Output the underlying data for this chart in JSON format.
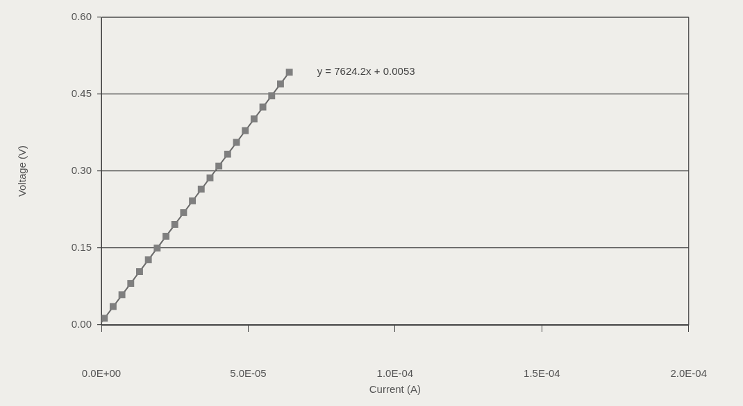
{
  "chart_data": {
    "type": "line",
    "xlabel": "Current (A)",
    "ylabel": "Voltage (V)",
    "xlim": [
      0,
      0.0002
    ],
    "xticks": [
      {
        "value": 0,
        "label": "0.0E+00"
      },
      {
        "value": 5e-05,
        "label": "5.0E-05"
      },
      {
        "value": 0.0001,
        "label": "1.0E-04"
      },
      {
        "value": 0.00015,
        "label": "1.5E-04"
      },
      {
        "value": 0.0002,
        "label": "2.0E-04"
      }
    ],
    "ylim": [
      0,
      0.6
    ],
    "yticks": [
      {
        "value": 0,
        "label": "0.00"
      },
      {
        "value": 0.15,
        "label": "0.15"
      },
      {
        "value": 0.3,
        "label": "0.30"
      },
      {
        "value": 0.45,
        "label": "0.45"
      },
      {
        "value": 0.6,
        "label": "0.60"
      }
    ],
    "grid": "y",
    "legend": false,
    "marker": "none",
    "series": [
      {
        "type": "scatter",
        "color": "#7f7f7f",
        "marker": "square",
        "x": [
          1e-06,
          4e-06,
          7e-06,
          1e-05,
          1.3e-05,
          1.6e-05,
          1.9e-05,
          2.2e-05,
          2.5e-05,
          2.8e-05,
          3.1e-05,
          3.4e-05,
          3.7e-05,
          4e-05,
          4.3e-05,
          4.6e-05,
          4.9e-05,
          5.2e-05,
          5.5e-05,
          5.8e-05,
          6.1e-05,
          6.4e-05
        ],
        "values": [
          0.013,
          0.036,
          0.059,
          0.081,
          0.104,
          0.127,
          0.15,
          0.173,
          0.196,
          0.219,
          0.242,
          0.265,
          0.287,
          0.31,
          0.333,
          0.356,
          0.379,
          0.402,
          0.425,
          0.447,
          0.47,
          0.493
        ]
      },
      {
        "type": "line",
        "color": "#6a6a6a",
        "line_style": "solid",
        "x": [
          0,
          6.4e-05
        ],
        "values": [
          0.005,
          0.493
        ]
      }
    ],
    "annotations": [
      "y = 7624.2x + 0.0053"
    ]
  }
}
